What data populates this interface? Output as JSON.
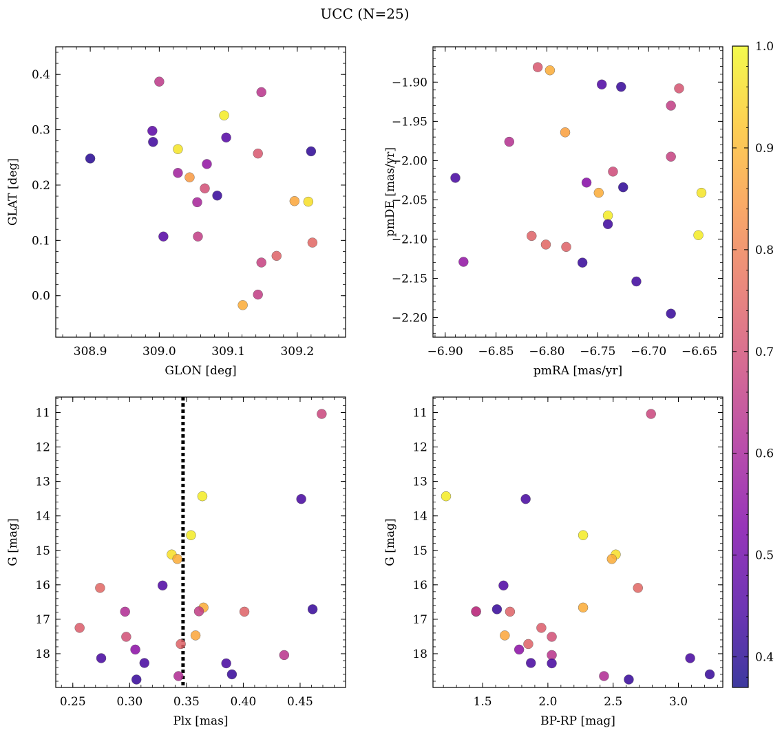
{
  "figure": {
    "title": "UCC (N=25)"
  },
  "colorbar": {
    "colormap": "plasma",
    "range": [
      0.37,
      1.0
    ],
    "ticks": [
      0.4,
      0.5,
      0.6,
      0.7,
      0.8,
      0.9,
      1.0
    ],
    "tick_labels": [
      "0.4",
      "0.5",
      "0.6",
      "0.7",
      "0.8",
      "0.9",
      "1.0"
    ]
  },
  "chart_data": [
    {
      "type": "scatter",
      "xlabel": "GLON [deg]",
      "ylabel": "GLAT [deg]",
      "xlim": [
        308.85,
        309.27
      ],
      "ylim": [
        -0.075,
        0.45
      ],
      "invert_y": false,
      "xticks": [
        308.9,
        309.0,
        309.1,
        309.2
      ],
      "xtick_labels": [
        "308.9",
        "309.0",
        "309.1",
        "309.2"
      ],
      "yticks": [
        0.0,
        0.1,
        0.2,
        0.3,
        0.4
      ],
      "ytick_labels": [
        "0.0",
        "0.1",
        "0.2",
        "0.3",
        "0.4"
      ],
      "vline": null,
      "points": [
        {
          "x": 309.0,
          "y": 0.387,
          "c": 0.65
        },
        {
          "x": 309.148,
          "y": 0.368,
          "c": 0.64
        },
        {
          "x": 309.094,
          "y": 0.326,
          "c": 0.98
        },
        {
          "x": 308.99,
          "y": 0.298,
          "c": 0.47
        },
        {
          "x": 309.097,
          "y": 0.286,
          "c": 0.46
        },
        {
          "x": 308.991,
          "y": 0.278,
          "c": 0.43
        },
        {
          "x": 309.027,
          "y": 0.265,
          "c": 0.97
        },
        {
          "x": 309.22,
          "y": 0.261,
          "c": 0.41
        },
        {
          "x": 309.143,
          "y": 0.257,
          "c": 0.72
        },
        {
          "x": 308.9,
          "y": 0.248,
          "c": 0.4
        },
        {
          "x": 309.069,
          "y": 0.238,
          "c": 0.56
        },
        {
          "x": 309.027,
          "y": 0.222,
          "c": 0.59
        },
        {
          "x": 309.044,
          "y": 0.214,
          "c": 0.85
        },
        {
          "x": 309.066,
          "y": 0.194,
          "c": 0.7
        },
        {
          "x": 309.084,
          "y": 0.181,
          "c": 0.42
        },
        {
          "x": 309.196,
          "y": 0.171,
          "c": 0.87
        },
        {
          "x": 309.216,
          "y": 0.17,
          "c": 0.96
        },
        {
          "x": 309.055,
          "y": 0.169,
          "c": 0.6
        },
        {
          "x": 309.006,
          "y": 0.107,
          "c": 0.46
        },
        {
          "x": 309.056,
          "y": 0.107,
          "c": 0.66
        },
        {
          "x": 309.222,
          "y": 0.096,
          "c": 0.75
        },
        {
          "x": 309.17,
          "y": 0.072,
          "c": 0.74
        },
        {
          "x": 309.148,
          "y": 0.06,
          "c": 0.67
        },
        {
          "x": 309.143,
          "y": 0.002,
          "c": 0.66
        },
        {
          "x": 309.121,
          "y": -0.017,
          "c": 0.88
        }
      ]
    },
    {
      "type": "scatter",
      "xlabel": "pmRA [mas/yr]",
      "ylabel": "pmDE [mas/yr]",
      "xlim": [
        -6.912,
        -6.627
      ],
      "ylim": [
        -2.225,
        -1.855
      ],
      "invert_y": false,
      "xticks": [
        -6.9,
        -6.85,
        -6.8,
        -6.75,
        -6.7,
        -6.65
      ],
      "xtick_labels": [
        "−6.90",
        "−6.85",
        "−6.80",
        "−6.75",
        "−6.70",
        "−6.65"
      ],
      "yticks": [
        -1.9,
        -1.95,
        -2.0,
        -2.05,
        -2.1,
        -2.15,
        -2.2
      ],
      "ytick_labels": [
        "−1.90",
        "−1.95",
        "−2.00",
        "−2.05",
        "−2.10",
        "−2.15",
        "−2.20"
      ],
      "vline": null,
      "points": [
        {
          "x": -6.809,
          "y": -1.881,
          "c": 0.72
        },
        {
          "x": -6.797,
          "y": -1.885,
          "c": 0.88
        },
        {
          "x": -6.746,
          "y": -1.903,
          "c": 0.45
        },
        {
          "x": -6.727,
          "y": -1.906,
          "c": 0.42
        },
        {
          "x": -6.67,
          "y": -1.908,
          "c": 0.71
        },
        {
          "x": -6.678,
          "y": -1.93,
          "c": 0.66
        },
        {
          "x": -6.782,
          "y": -1.964,
          "c": 0.86
        },
        {
          "x": -6.837,
          "y": -1.976,
          "c": 0.63
        },
        {
          "x": -6.678,
          "y": -1.995,
          "c": 0.67
        },
        {
          "x": -6.735,
          "y": -2.014,
          "c": 0.69
        },
        {
          "x": -6.89,
          "y": -2.022,
          "c": 0.44
        },
        {
          "x": -6.761,
          "y": -2.028,
          "c": 0.54
        },
        {
          "x": -6.725,
          "y": -2.034,
          "c": 0.41
        },
        {
          "x": -6.749,
          "y": -2.041,
          "c": 0.88
        },
        {
          "x": -6.648,
          "y": -2.041,
          "c": 0.97
        },
        {
          "x": -6.74,
          "y": -2.07,
          "c": 0.98
        },
        {
          "x": -6.74,
          "y": -2.081,
          "c": 0.43
        },
        {
          "x": -6.651,
          "y": -2.095,
          "c": 0.98
        },
        {
          "x": -6.815,
          "y": -2.096,
          "c": 0.74
        },
        {
          "x": -6.801,
          "y": -2.107,
          "c": 0.75
        },
        {
          "x": -6.781,
          "y": -2.11,
          "c": 0.74
        },
        {
          "x": -6.882,
          "y": -2.129,
          "c": 0.56
        },
        {
          "x": -6.765,
          "y": -2.13,
          "c": 0.42
        },
        {
          "x": -6.712,
          "y": -2.154,
          "c": 0.43
        },
        {
          "x": -6.678,
          "y": -2.195,
          "c": 0.42
        }
      ]
    },
    {
      "type": "scatter",
      "xlabel": "Plx [mas]",
      "ylabel": "G [mag]",
      "xlim": [
        0.235,
        0.49
      ],
      "ylim": [
        18.98,
        10.55
      ],
      "invert_y": true,
      "xticks": [
        0.25,
        0.3,
        0.35,
        0.4,
        0.45
      ],
      "xtick_labels": [
        "0.25",
        "0.30",
        "0.35",
        "0.40",
        "0.45"
      ],
      "yticks": [
        11,
        12,
        13,
        14,
        15,
        16,
        17,
        18
      ],
      "ytick_labels": [
        "11",
        "12",
        "13",
        "14",
        "15",
        "16",
        "17",
        "18"
      ],
      "vline": 0.347,
      "points": [
        {
          "x": 0.469,
          "y": 11.04,
          "c": 0.68
        },
        {
          "x": 0.364,
          "y": 13.43,
          "c": 0.98
        },
        {
          "x": 0.451,
          "y": 13.51,
          "c": 0.44
        },
        {
          "x": 0.354,
          "y": 14.56,
          "c": 0.98
        },
        {
          "x": 0.337,
          "y": 15.12,
          "c": 0.96
        },
        {
          "x": 0.342,
          "y": 15.25,
          "c": 0.88
        },
        {
          "x": 0.329,
          "y": 16.02,
          "c": 0.45
        },
        {
          "x": 0.274,
          "y": 16.09,
          "c": 0.75
        },
        {
          "x": 0.461,
          "y": 16.71,
          "c": 0.42
        },
        {
          "x": 0.365,
          "y": 16.66,
          "c": 0.88
        },
        {
          "x": 0.296,
          "y": 16.78,
          "c": 0.62
        },
        {
          "x": 0.361,
          "y": 16.77,
          "c": 0.66
        },
        {
          "x": 0.401,
          "y": 16.78,
          "c": 0.74
        },
        {
          "x": 0.256,
          "y": 17.25,
          "c": 0.73
        },
        {
          "x": 0.358,
          "y": 17.47,
          "c": 0.87
        },
        {
          "x": 0.297,
          "y": 17.51,
          "c": 0.7
        },
        {
          "x": 0.345,
          "y": 17.72,
          "c": 0.74
        },
        {
          "x": 0.305,
          "y": 17.88,
          "c": 0.55
        },
        {
          "x": 0.436,
          "y": 18.04,
          "c": 0.64
        },
        {
          "x": 0.275,
          "y": 18.13,
          "c": 0.44
        },
        {
          "x": 0.313,
          "y": 18.27,
          "c": 0.44
        },
        {
          "x": 0.385,
          "y": 18.28,
          "c": 0.44
        },
        {
          "x": 0.39,
          "y": 18.6,
          "c": 0.42
        },
        {
          "x": 0.343,
          "y": 18.65,
          "c": 0.62
        },
        {
          "x": 0.306,
          "y": 18.75,
          "c": 0.42
        }
      ]
    },
    {
      "type": "scatter",
      "xlabel": "BP-RP [mag]",
      "ylabel": "G [mag]",
      "xlim": [
        1.12,
        3.34
      ],
      "ylim": [
        18.98,
        10.55
      ],
      "invert_y": true,
      "xticks": [
        1.5,
        2.0,
        2.5,
        3.0
      ],
      "xtick_labels": [
        "1.5",
        "2.0",
        "2.5",
        "3.0"
      ],
      "yticks": [
        11,
        12,
        13,
        14,
        15,
        16,
        17,
        18
      ],
      "ytick_labels": [
        "11",
        "12",
        "13",
        "14",
        "15",
        "16",
        "17",
        "18"
      ],
      "vline": null,
      "points": [
        {
          "x": 2.79,
          "y": 11.04,
          "c": 0.68
        },
        {
          "x": 1.22,
          "y": 13.43,
          "c": 0.98
        },
        {
          "x": 1.83,
          "y": 13.51,
          "c": 0.44
        },
        {
          "x": 2.27,
          "y": 14.56,
          "c": 0.98
        },
        {
          "x": 2.52,
          "y": 15.12,
          "c": 0.96
        },
        {
          "x": 2.49,
          "y": 15.25,
          "c": 0.88
        },
        {
          "x": 1.66,
          "y": 16.02,
          "c": 0.45
        },
        {
          "x": 2.69,
          "y": 16.09,
          "c": 0.75
        },
        {
          "x": 1.61,
          "y": 16.71,
          "c": 0.42
        },
        {
          "x": 2.27,
          "y": 16.66,
          "c": 0.88
        },
        {
          "x": 1.45,
          "y": 16.78,
          "c": 0.62
        },
        {
          "x": 1.45,
          "y": 16.77,
          "c": 0.66
        },
        {
          "x": 1.71,
          "y": 16.78,
          "c": 0.74
        },
        {
          "x": 1.95,
          "y": 17.25,
          "c": 0.73
        },
        {
          "x": 1.67,
          "y": 17.47,
          "c": 0.87
        },
        {
          "x": 2.03,
          "y": 17.51,
          "c": 0.7
        },
        {
          "x": 1.85,
          "y": 17.72,
          "c": 0.74
        },
        {
          "x": 1.78,
          "y": 17.88,
          "c": 0.55
        },
        {
          "x": 2.03,
          "y": 18.04,
          "c": 0.64
        },
        {
          "x": 3.09,
          "y": 18.13,
          "c": 0.44
        },
        {
          "x": 1.87,
          "y": 18.27,
          "c": 0.44
        },
        {
          "x": 2.03,
          "y": 18.28,
          "c": 0.44
        },
        {
          "x": 3.24,
          "y": 18.6,
          "c": 0.42
        },
        {
          "x": 2.43,
          "y": 18.65,
          "c": 0.62
        },
        {
          "x": 2.62,
          "y": 18.75,
          "c": 0.42
        }
      ]
    }
  ]
}
